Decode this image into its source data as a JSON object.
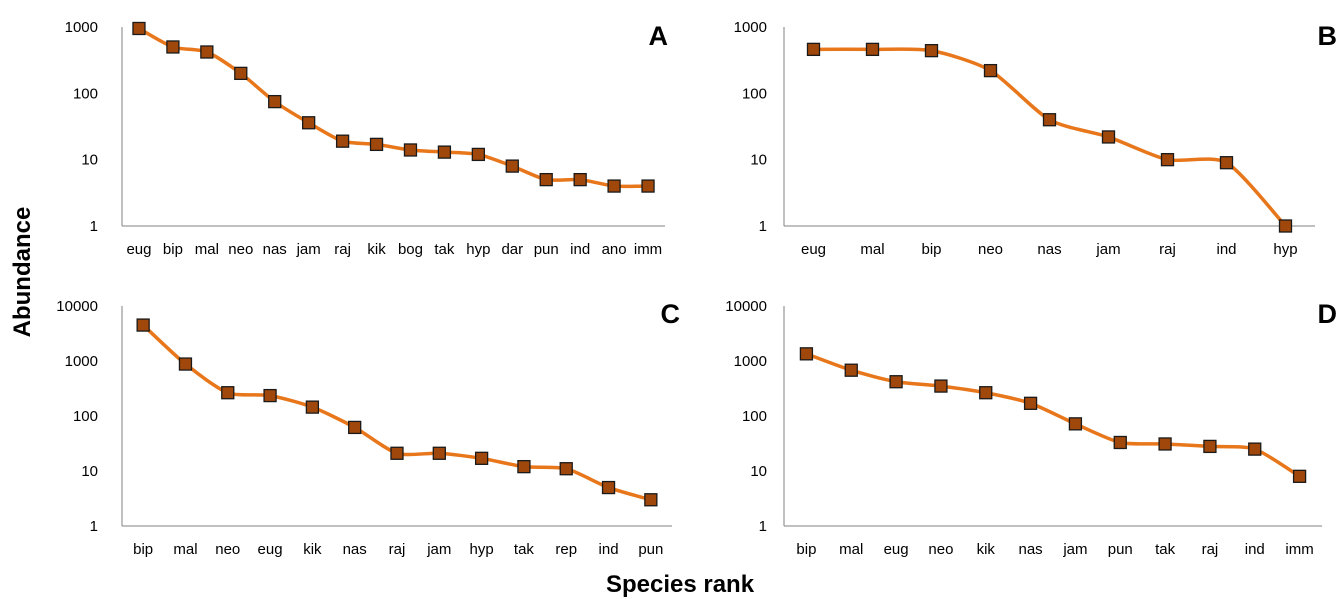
{
  "figure": {
    "ylabel": "Abundance",
    "xlabel": "Species rank"
  },
  "chart_data": [
    {
      "panel": "A",
      "type": "line",
      "scale": "log",
      "ylim": [
        1,
        1000
      ],
      "yticks": [
        "1",
        "10",
        "100",
        "1000"
      ],
      "categories": [
        "eug",
        "bip",
        "mal",
        "neo",
        "nas",
        "jam",
        "raj",
        "kik",
        "bog",
        "tak",
        "hyp",
        "dar",
        "pun",
        "ind",
        "ano",
        "imm"
      ],
      "values": [
        950,
        500,
        420,
        200,
        75,
        36,
        19,
        17,
        14,
        13,
        12,
        8,
        5,
        5,
        4,
        4
      ],
      "line_color": "#e8761b",
      "marker_color": "#a0480b"
    },
    {
      "panel": "B",
      "type": "line",
      "scale": "log",
      "ylim": [
        1,
        1000
      ],
      "yticks": [
        "1",
        "10",
        "100",
        "1000"
      ],
      "categories": [
        "eug",
        "mal",
        "bip",
        "neo",
        "nas",
        "jam",
        "raj",
        "ind",
        "hyp"
      ],
      "values": [
        460,
        460,
        440,
        220,
        40,
        22,
        10,
        9,
        1
      ],
      "line_color": "#e8761b",
      "marker_color": "#a0480b"
    },
    {
      "panel": "C",
      "type": "line",
      "scale": "log",
      "ylim": [
        1,
        10000
      ],
      "yticks": [
        "1",
        "10",
        "100",
        "1000",
        "10000"
      ],
      "categories": [
        "bip",
        "mal",
        "neo",
        "eug",
        "kik",
        "nas",
        "raj",
        "jam",
        "hyp",
        "tak",
        "rep",
        "ind",
        "pun"
      ],
      "values": [
        4500,
        880,
        265,
        235,
        145,
        62,
        21,
        21,
        17,
        12,
        11,
        5,
        3
      ],
      "line_color": "#e8761b",
      "marker_color": "#a0480b"
    },
    {
      "panel": "D",
      "type": "line",
      "scale": "log",
      "ylim": [
        1,
        10000
      ],
      "yticks": [
        "1",
        "10",
        "100",
        "1000",
        "10000"
      ],
      "categories": [
        "bip",
        "mal",
        "eug",
        "neo",
        "kik",
        "nas",
        "jam",
        "pun",
        "tak",
        "raj",
        "ind",
        "imm"
      ],
      "values": [
        1350,
        680,
        420,
        350,
        265,
        170,
        72,
        33,
        31,
        28,
        25,
        8
      ],
      "line_color": "#e8761b",
      "marker_color": "#a0480b"
    }
  ]
}
